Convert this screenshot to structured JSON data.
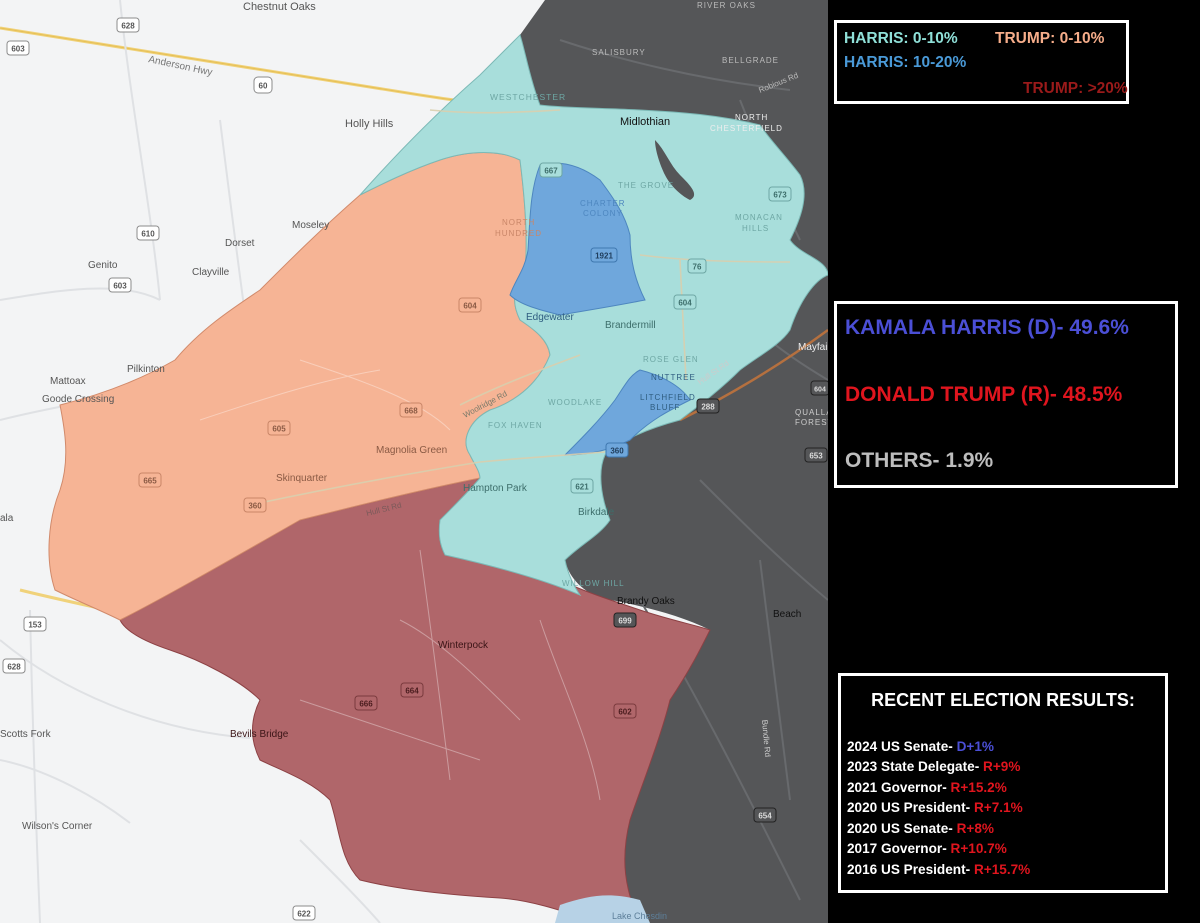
{
  "map": {
    "place_labels": [
      {
        "text": "Chestnut Oaks"
      },
      {
        "text": "Anderson Hwy"
      },
      {
        "text": "Holly Hills"
      },
      {
        "text": "Moseley"
      },
      {
        "text": "Dorset"
      },
      {
        "text": "Genito"
      },
      {
        "text": "Clayville"
      },
      {
        "text": "Pilkinton"
      },
      {
        "text": "Mattoax"
      },
      {
        "text": "Goode Crossing"
      },
      {
        "text": "ala"
      },
      {
        "text": "Skinquarter"
      },
      {
        "text": "Magnolia Green"
      },
      {
        "text": "Woolridge Rd"
      },
      {
        "text": "Hull St Rd"
      },
      {
        "text": "Edgewater"
      },
      {
        "text": "Brandermill"
      },
      {
        "text": "Midlothian"
      },
      {
        "text": "WESTCHESTER"
      },
      {
        "text": "SALISBURY"
      },
      {
        "text": "RIVER OAKS"
      },
      {
        "text": "BELLGRADE"
      },
      {
        "text": "Robious Rd"
      },
      {
        "text": "NORTH"
      },
      {
        "text": "CHESTERFIELD"
      },
      {
        "text": "THE GROVE"
      },
      {
        "text": "CHARTER"
      },
      {
        "text": "COLONY"
      },
      {
        "text": "NORTH"
      },
      {
        "text": "HUNDRED"
      },
      {
        "text": "MONACAN"
      },
      {
        "text": "HILLS"
      },
      {
        "text": "ROSE GLEN"
      },
      {
        "text": "NUTTREE"
      },
      {
        "text": "LITCHFIELD"
      },
      {
        "text": "BLUFF"
      },
      {
        "text": "WOODLAKE"
      },
      {
        "text": "FOX HAVEN"
      },
      {
        "text": "Hull St Rd"
      },
      {
        "text": "Mayfai"
      },
      {
        "text": "QUALLA"
      },
      {
        "text": "FOREST"
      },
      {
        "text": "Hampton Park"
      },
      {
        "text": "Birkdale"
      },
      {
        "text": "WILLOW HILL"
      },
      {
        "text": "Brandy Oaks"
      },
      {
        "text": "Beach"
      },
      {
        "text": "Winterpock"
      },
      {
        "text": "Bevils Bridge"
      },
      {
        "text": "Scotts Fork"
      },
      {
        "text": "Wilson's Corner"
      },
      {
        "text": "Lake Chesdin"
      },
      {
        "text": "Bundle Rd"
      }
    ],
    "route_shields": [
      {
        "text": "628"
      },
      {
        "text": "603"
      },
      {
        "text": "60"
      },
      {
        "text": "610"
      },
      {
        "text": "603"
      },
      {
        "text": "604"
      },
      {
        "text": "605"
      },
      {
        "text": "668"
      },
      {
        "text": "665"
      },
      {
        "text": "360"
      },
      {
        "text": "667"
      },
      {
        "text": "1921"
      },
      {
        "text": "76"
      },
      {
        "text": "604"
      },
      {
        "text": "673"
      },
      {
        "text": "288"
      },
      {
        "text": "360"
      },
      {
        "text": "621"
      },
      {
        "text": "604"
      },
      {
        "text": "653"
      },
      {
        "text": "699"
      },
      {
        "text": "664"
      },
      {
        "text": "666"
      },
      {
        "text": "602"
      },
      {
        "text": "654"
      },
      {
        "text": "153"
      },
      {
        "text": "628"
      },
      {
        "text": "622"
      }
    ],
    "colors": {
      "harris_0_10": "#a8dedb",
      "harris_10_20": "#6fa7dc",
      "trump_0_10": "#f6b495",
      "trump_over_20": "#b0666a",
      "outside_dark": "#555658",
      "basemap": "#f3f4f5"
    }
  },
  "legend": {
    "harris_0_10": {
      "label": "HARRIS: 0-10%",
      "color": "#8fe0d8"
    },
    "trump_0_10": {
      "label": "TRUMP: 0-10%",
      "color": "#f6ad8a"
    },
    "harris_10_20": {
      "label": "HARRIS: 10-20%",
      "color": "#4a9ad8"
    },
    "trump_over_20": {
      "label": "TRUMP: >20%",
      "color": "#9a1a1a"
    }
  },
  "results": {
    "harris": {
      "label": "KAMALA HARRIS (D)- ",
      "value": "49.6%",
      "color": "#4b4fd6"
    },
    "trump": {
      "label": "DONALD TRUMP (R)- ",
      "value": "48.5%",
      "color": "#e0151e"
    },
    "others": {
      "label": "OTHERS- ",
      "value": "1.9%",
      "color": "#bdbdbd"
    }
  },
  "recent": {
    "title": "RECENT ELECTION RESULTS:",
    "rows": [
      {
        "label": "2024 US Senate- ",
        "value": "D+1%",
        "color": "#4b4fd6"
      },
      {
        "label": "2023 State Delegate- ",
        "value": "R+9%",
        "color": "#e0151e"
      },
      {
        "label": "2021 Governor- ",
        "value": "R+15.2%",
        "color": "#e0151e"
      },
      {
        "label": "2020 US President- ",
        "value": "R+7.1%",
        "color": "#e0151e"
      },
      {
        "label": "2020 US Senate- ",
        "value": "R+8%",
        "color": "#e0151e"
      },
      {
        "label": "2017 Governor- ",
        "value": "R+10.7%",
        "color": "#e0151e"
      },
      {
        "label": "2016 US President- ",
        "value": "R+15.7%",
        "color": "#e0151e"
      }
    ]
  }
}
